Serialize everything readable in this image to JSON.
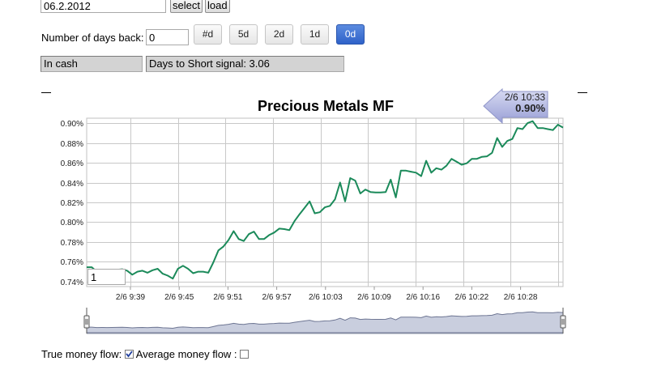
{
  "controls": {
    "date_value": "06.2.2012",
    "select_label": "select",
    "load_label": "load",
    "days_back_label": "Number of days back:",
    "days_back_value": "0",
    "range_buttons": [
      "#d",
      "5d",
      "2d",
      "1d",
      "0d"
    ],
    "active_range": "0d"
  },
  "status": {
    "position": "In cash",
    "signal": "Days to Short signal: 3.06"
  },
  "tooltip": {
    "time": "2/6 10:33",
    "value": "0.90%"
  },
  "series_input_value": "1",
  "legend": {
    "true_money_flow_label": "True money flow:",
    "true_money_flow_checked": true,
    "average_money_flow_label": "Average money flow :",
    "average_money_flow_checked": false
  },
  "colors": {
    "line": "#1b8a5a",
    "active_button": "#3a6fd8",
    "navigator_fill": "#c9cede"
  },
  "chart_data": {
    "type": "line",
    "title": "Precious Metals MF",
    "xlabel": "",
    "ylabel": "",
    "x_tick_labels": [
      "2/6 9:39",
      "2/6 9:45",
      "2/6 9:51",
      "2/6 9:57",
      "2/6 10:03",
      "2/6 10:09",
      "2/6 10:16",
      "2/6 10:22",
      "2/6 10:28"
    ],
    "y_tick_labels": [
      "0.74%",
      "0.76%",
      "0.78%",
      "0.80%",
      "0.82%",
      "0.84%",
      "0.86%",
      "0.88%",
      "0.90%"
    ],
    "ylim": [
      0.735,
      0.905
    ],
    "grid": true,
    "series": [
      {
        "values": [
          0.7545,
          0.7545,
          0.75,
          0.751,
          0.75,
          0.751,
          0.752,
          0.7525,
          0.751,
          0.747,
          0.75,
          0.751,
          0.749,
          0.7515,
          0.753,
          0.748,
          0.746,
          0.743,
          0.753,
          0.756,
          0.753,
          0.7485,
          0.75,
          0.75,
          0.749,
          0.7595,
          0.7715,
          0.7755,
          0.782,
          0.791,
          0.783,
          0.781,
          0.788,
          0.7905,
          0.783,
          0.783,
          0.787,
          0.7895,
          0.7935,
          0.793,
          0.792,
          0.801,
          0.808,
          0.8145,
          0.821,
          0.809,
          0.81,
          0.815,
          0.8165,
          0.823,
          0.84,
          0.821,
          0.8445,
          0.842,
          0.829,
          0.833,
          0.8305,
          0.83,
          0.83,
          0.8305,
          0.843,
          0.825,
          0.852,
          0.852,
          0.851,
          0.85,
          0.8465,
          0.862,
          0.85,
          0.8545,
          0.853,
          0.857,
          0.864,
          0.861,
          0.858,
          0.8595,
          0.864,
          0.864,
          0.866,
          0.8665,
          0.87,
          0.885,
          0.876,
          0.882,
          0.884,
          0.895,
          0.894,
          0.9,
          0.902,
          0.895,
          0.895,
          0.894,
          0.893,
          0.8985,
          0.8955
        ]
      }
    ]
  }
}
